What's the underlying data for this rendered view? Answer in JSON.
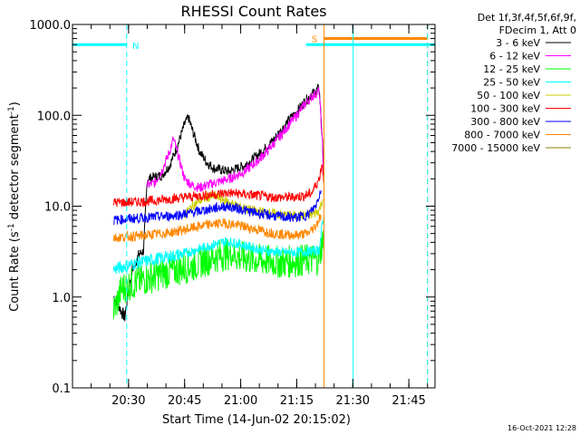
{
  "chart_data": {
    "type": "line",
    "title": "RHESSI Count Rates",
    "xlabel": "Start Time (14-Jun-02 20:15:02)",
    "ylabel_main": "Count Rate (s",
    "ylabel_sup": "-1",
    "ylabel_rest": " detector segment",
    "ylabel_sup2": "-1",
    "ylabel_close": ")",
    "y_scale": "log",
    "xlim_minutes": [
      0,
      97
    ],
    "ylim": [
      0.1,
      1000
    ],
    "x_ticks": [
      {
        "minutes": 15,
        "label": "20:30"
      },
      {
        "minutes": 30,
        "label": "20:45"
      },
      {
        "minutes": 45,
        "label": "21:00"
      },
      {
        "minutes": 60,
        "label": "21:15"
      },
      {
        "minutes": 75,
        "label": "21:30"
      },
      {
        "minutes": 90,
        "label": "21:45"
      }
    ],
    "y_ticks": [
      {
        "value": 0.1,
        "label": "0.1"
      },
      {
        "value": 1,
        "label": "1.0"
      },
      {
        "value": 10,
        "label": "10.0"
      },
      {
        "value": 100,
        "label": "100.0"
      },
      {
        "value": 1000,
        "label": "1000.0"
      }
    ],
    "legend_header": [
      "Det 1f,3f,4f,5f,6f,9f,",
      "FDecim 1, Att 0"
    ],
    "legend_position": "top-right",
    "series": [
      {
        "name": "3 - 6 keV",
        "color": "#000000",
        "points": [
          [
            11,
            1.0
          ],
          [
            12,
            0.9
          ],
          [
            13,
            0.7
          ],
          [
            14,
            0.6
          ],
          [
            15,
            1.2
          ],
          [
            16,
            2.0
          ],
          [
            17,
            2.5
          ],
          [
            18,
            3.0
          ],
          [
            19,
            3.2
          ],
          [
            20,
            20
          ],
          [
            24,
            22
          ],
          [
            26,
            28
          ],
          [
            28,
            45
          ],
          [
            30,
            80
          ],
          [
            31,
            95
          ],
          [
            32,
            70
          ],
          [
            34,
            40
          ],
          [
            36,
            30
          ],
          [
            38,
            26
          ],
          [
            40,
            25
          ],
          [
            42,
            24
          ],
          [
            44,
            26
          ],
          [
            46,
            28
          ],
          [
            48,
            32
          ],
          [
            50,
            38
          ],
          [
            52,
            45
          ],
          [
            54,
            55
          ],
          [
            56,
            70
          ],
          [
            58,
            90
          ],
          [
            60,
            110
          ],
          [
            62,
            140
          ],
          [
            64,
            170
          ],
          [
            66,
            200
          ],
          [
            66.8,
            60
          ],
          [
            67.3,
            20
          ]
        ]
      },
      {
        "name": "6 - 12 keV",
        "color": "#ff00ff",
        "points": [
          [
            20,
            17
          ],
          [
            22,
            18
          ],
          [
            24,
            25
          ],
          [
            26,
            40
          ],
          [
            27,
            55
          ],
          [
            28,
            40
          ],
          [
            30,
            20
          ],
          [
            32,
            17
          ],
          [
            34,
            16
          ],
          [
            36,
            17
          ],
          [
            38,
            18
          ],
          [
            40,
            19
          ],
          [
            42,
            20
          ],
          [
            44,
            22
          ],
          [
            46,
            24
          ],
          [
            48,
            28
          ],
          [
            50,
            33
          ],
          [
            52,
            40
          ],
          [
            54,
            50
          ],
          [
            56,
            62
          ],
          [
            58,
            80
          ],
          [
            60,
            100
          ],
          [
            62,
            130
          ],
          [
            64,
            160
          ],
          [
            66,
            185
          ],
          [
            66.8,
            55
          ],
          [
            67.3,
            18
          ]
        ]
      },
      {
        "name": "12 - 25 keV",
        "color": "#00ff00",
        "points": [
          [
            11,
            0.7
          ],
          [
            12,
            0.9
          ],
          [
            13,
            1.2
          ],
          [
            14,
            1.3
          ],
          [
            16,
            1.4
          ],
          [
            18,
            1.5
          ],
          [
            20,
            1.6
          ],
          [
            24,
            1.8
          ],
          [
            28,
            2.0
          ],
          [
            32,
            2.2
          ],
          [
            36,
            2.6
          ],
          [
            40,
            2.9
          ],
          [
            42,
            3.0
          ],
          [
            44,
            2.8
          ],
          [
            48,
            2.6
          ],
          [
            52,
            2.5
          ],
          [
            56,
            2.4
          ],
          [
            60,
            2.5
          ],
          [
            64,
            2.6
          ],
          [
            66,
            2.6
          ],
          [
            66.8,
            4.0
          ],
          [
            67.3,
            5.0
          ]
        ]
      },
      {
        "name": "25 - 50 keV",
        "color": "#00ffff",
        "points": [
          [
            11,
            2.0
          ],
          [
            14,
            2.2
          ],
          [
            18,
            2.4
          ],
          [
            22,
            2.6
          ],
          [
            26,
            2.8
          ],
          [
            30,
            3.0
          ],
          [
            34,
            3.4
          ],
          [
            38,
            3.8
          ],
          [
            41,
            4.1
          ],
          [
            44,
            3.9
          ],
          [
            48,
            3.5
          ],
          [
            52,
            3.2
          ],
          [
            56,
            3.1
          ],
          [
            60,
            3.1
          ],
          [
            64,
            3.2
          ],
          [
            66,
            3.3
          ],
          [
            66.8,
            6
          ],
          [
            67.3,
            8
          ]
        ]
      },
      {
        "name": "50 - 100 keV",
        "color": "#cccc00",
        "points": [
          [
            30,
            8
          ],
          [
            32,
            10
          ],
          [
            34,
            11.5
          ],
          [
            36,
            12.5
          ],
          [
            38,
            13
          ],
          [
            40,
            12
          ],
          [
            42,
            11
          ],
          [
            44,
            10
          ],
          [
            48,
            9
          ],
          [
            52,
            8.5
          ],
          [
            56,
            8
          ],
          [
            60,
            7.8
          ],
          [
            64,
            8
          ],
          [
            66,
            9
          ],
          [
            67,
            12
          ]
        ]
      },
      {
        "name": "100 - 300 keV",
        "color": "#ff0000",
        "points": [
          [
            11,
            11
          ],
          [
            14,
            11
          ],
          [
            18,
            11.2
          ],
          [
            22,
            11.5
          ],
          [
            26,
            12
          ],
          [
            30,
            12.5
          ],
          [
            34,
            13
          ],
          [
            38,
            13.5
          ],
          [
            42,
            14
          ],
          [
            46,
            13.5
          ],
          [
            50,
            13
          ],
          [
            54,
            12.5
          ],
          [
            58,
            12.5
          ],
          [
            62,
            13
          ],
          [
            64,
            14
          ],
          [
            66,
            20
          ],
          [
            66.8,
            30
          ],
          [
            67.3,
            18
          ]
        ]
      },
      {
        "name": "300 - 800 keV",
        "color": "#0000ff",
        "points": [
          [
            11,
            7
          ],
          [
            14,
            7.2
          ],
          [
            18,
            7.4
          ],
          [
            22,
            7.6
          ],
          [
            26,
            7.8
          ],
          [
            30,
            8.2
          ],
          [
            34,
            8.8
          ],
          [
            38,
            9.5
          ],
          [
            41,
            10
          ],
          [
            44,
            9.5
          ],
          [
            48,
            8.6
          ],
          [
            52,
            8
          ],
          [
            56,
            7.6
          ],
          [
            60,
            7.5
          ],
          [
            63,
            8
          ],
          [
            65,
            10
          ],
          [
            66.5,
            15
          ]
        ]
      },
      {
        "name": "800 - 7000 keV",
        "color": "#ff8800",
        "points": [
          [
            11,
            4.5
          ],
          [
            14,
            4.6
          ],
          [
            18,
            4.7
          ],
          [
            22,
            4.9
          ],
          [
            26,
            5.1
          ],
          [
            30,
            5.5
          ],
          [
            34,
            6
          ],
          [
            38,
            6.4
          ],
          [
            41,
            6.5
          ],
          [
            44,
            6.2
          ],
          [
            48,
            5.7
          ],
          [
            52,
            5.2
          ],
          [
            56,
            4.9
          ],
          [
            60,
            4.8
          ],
          [
            63,
            5
          ],
          [
            65,
            6
          ],
          [
            66.5,
            8
          ]
        ]
      },
      {
        "name": "7000 - 15000 keV",
        "color": "#808000",
        "points": []
      }
    ],
    "step_lines": [
      {
        "color": "#00ffff",
        "y": 600,
        "segments": [
          [
            0,
            14.5
          ],
          [
            62.5,
            97
          ]
        ]
      },
      {
        "color": "#ff8800",
        "y": 700,
        "segments": [
          [
            67.3,
            95
          ]
        ]
      }
    ],
    "vlines": [
      {
        "minutes": 0,
        "color": "#00ffff",
        "style": "solid"
      },
      {
        "minutes": 14.5,
        "color": "#00ffff",
        "style": "dashed"
      },
      {
        "minutes": 67.3,
        "color": "#ff8800",
        "style": "solid"
      },
      {
        "minutes": 75.1,
        "color": "#00ffff",
        "style": "solid"
      },
      {
        "minutes": 95,
        "color": "#ff8800",
        "style": "dashed"
      },
      {
        "minutes": 95,
        "color": "#00ffff",
        "style": "dashed"
      }
    ],
    "annotations": [
      {
        "text": "N",
        "color": "#00ffff",
        "minutes": 16,
        "value": 590
      },
      {
        "text": "S",
        "color": "#ff8800",
        "minutes": 64,
        "value": 700
      }
    ],
    "timestamp": "16-Oct-2021 12:28"
  }
}
